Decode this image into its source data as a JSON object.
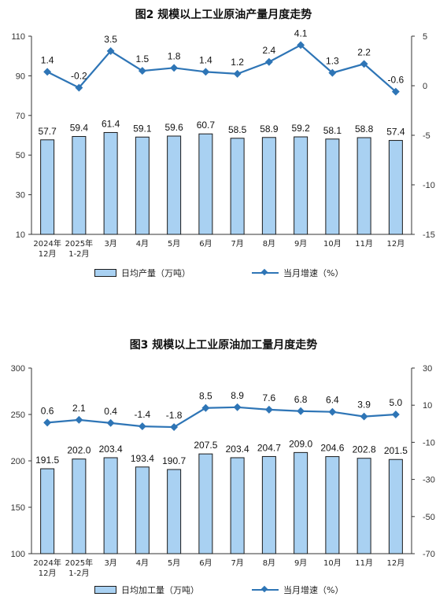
{
  "chart_data": [
    {
      "type": "bar",
      "title": "图2  规模以上工业原油产量月度走势",
      "categories": [
        [
          "2024年",
          "12月"
        ],
        [
          "2025年",
          "1-2月"
        ],
        [
          "3月"
        ],
        [
          "4月"
        ],
        [
          "5月"
        ],
        [
          "6月"
        ],
        [
          "7月"
        ],
        [
          "8月"
        ],
        [
          "9月"
        ],
        [
          "10月"
        ],
        [
          "11月"
        ],
        [
          "12月"
        ]
      ],
      "series": [
        {
          "name": "日均产量（万吨）",
          "type": "bar",
          "axis": "left",
          "values": [
            57.7,
            59.4,
            61.4,
            59.1,
            59.6,
            60.7,
            58.5,
            58.9,
            59.2,
            58.1,
            58.8,
            57.4
          ],
          "labels": [
            "57.7",
            "59.4",
            "61.4",
            "59.1",
            "59.6",
            "60.7",
            "58.5",
            "58.9",
            "59.2",
            "58.1",
            "58.8",
            "57.4"
          ]
        },
        {
          "name": "当月增速（%）",
          "type": "line",
          "axis": "right",
          "values": [
            1.4,
            -0.2,
            3.5,
            1.5,
            1.8,
            1.4,
            1.2,
            2.4,
            4.1,
            1.3,
            2.2,
            -0.6
          ],
          "labels": [
            "1.4",
            "-0.2",
            "3.5",
            "1.5",
            "1.8",
            "1.4",
            "1.2",
            "2.4",
            "4.1",
            "1.3",
            "2.2",
            "-0.6"
          ]
        }
      ],
      "y_left": {
        "ylim": [
          10,
          110
        ],
        "ticks": [
          "10",
          "30",
          "50",
          "70",
          "90",
          "110"
        ]
      },
      "y_right": {
        "ylim": [
          -15,
          5
        ],
        "ticks": [
          "-15",
          "-10",
          "-5",
          "0",
          "5"
        ]
      },
      "legend_position": "bottom",
      "bar_color": "#a9d1f2",
      "line_color": "#2e75b6"
    },
    {
      "type": "bar",
      "title": "图3  规模以上工业原油加工量月度走势",
      "categories": [
        [
          "2024年",
          "12月"
        ],
        [
          "2025年",
          "1-2月"
        ],
        [
          "3月"
        ],
        [
          "4月"
        ],
        [
          "5月"
        ],
        [
          "6月"
        ],
        [
          "7月"
        ],
        [
          "8月"
        ],
        [
          "9月"
        ],
        [
          "10月"
        ],
        [
          "11月"
        ],
        [
          "12月"
        ]
      ],
      "series": [
        {
          "name": "日均加工量（万吨）",
          "type": "bar",
          "axis": "left",
          "values": [
            191.5,
            202.0,
            203.4,
            193.4,
            190.7,
            207.5,
            203.4,
            204.7,
            209.0,
            204.6,
            202.8,
            201.5
          ],
          "labels": [
            "191.5",
            "202.0",
            "203.4",
            "193.4",
            "190.7",
            "207.5",
            "203.4",
            "204.7",
            "209.0",
            "204.6",
            "202.8",
            "201.5"
          ]
        },
        {
          "name": "当月增速（%）",
          "type": "line",
          "axis": "right",
          "values": [
            0.6,
            2.1,
            0.4,
            -1.4,
            -1.8,
            8.5,
            8.9,
            7.6,
            6.8,
            6.4,
            3.9,
            5.0
          ],
          "labels": [
            "0.6",
            "2.1",
            "0.4",
            "-1.4",
            "-1.8",
            "8.5",
            "8.9",
            "7.6",
            "6.8",
            "6.4",
            "3.9",
            "5.0"
          ]
        }
      ],
      "y_left": {
        "ylim": [
          100,
          300
        ],
        "ticks": [
          "100",
          "150",
          "200",
          "250",
          "300"
        ]
      },
      "y_right": {
        "ylim": [
          -70,
          30
        ],
        "ticks": [
          "-70",
          "-50",
          "-30",
          "-10",
          "10",
          "30"
        ]
      },
      "legend_position": "bottom",
      "bar_color": "#a9d1f2",
      "line_color": "#2e75b6"
    }
  ]
}
